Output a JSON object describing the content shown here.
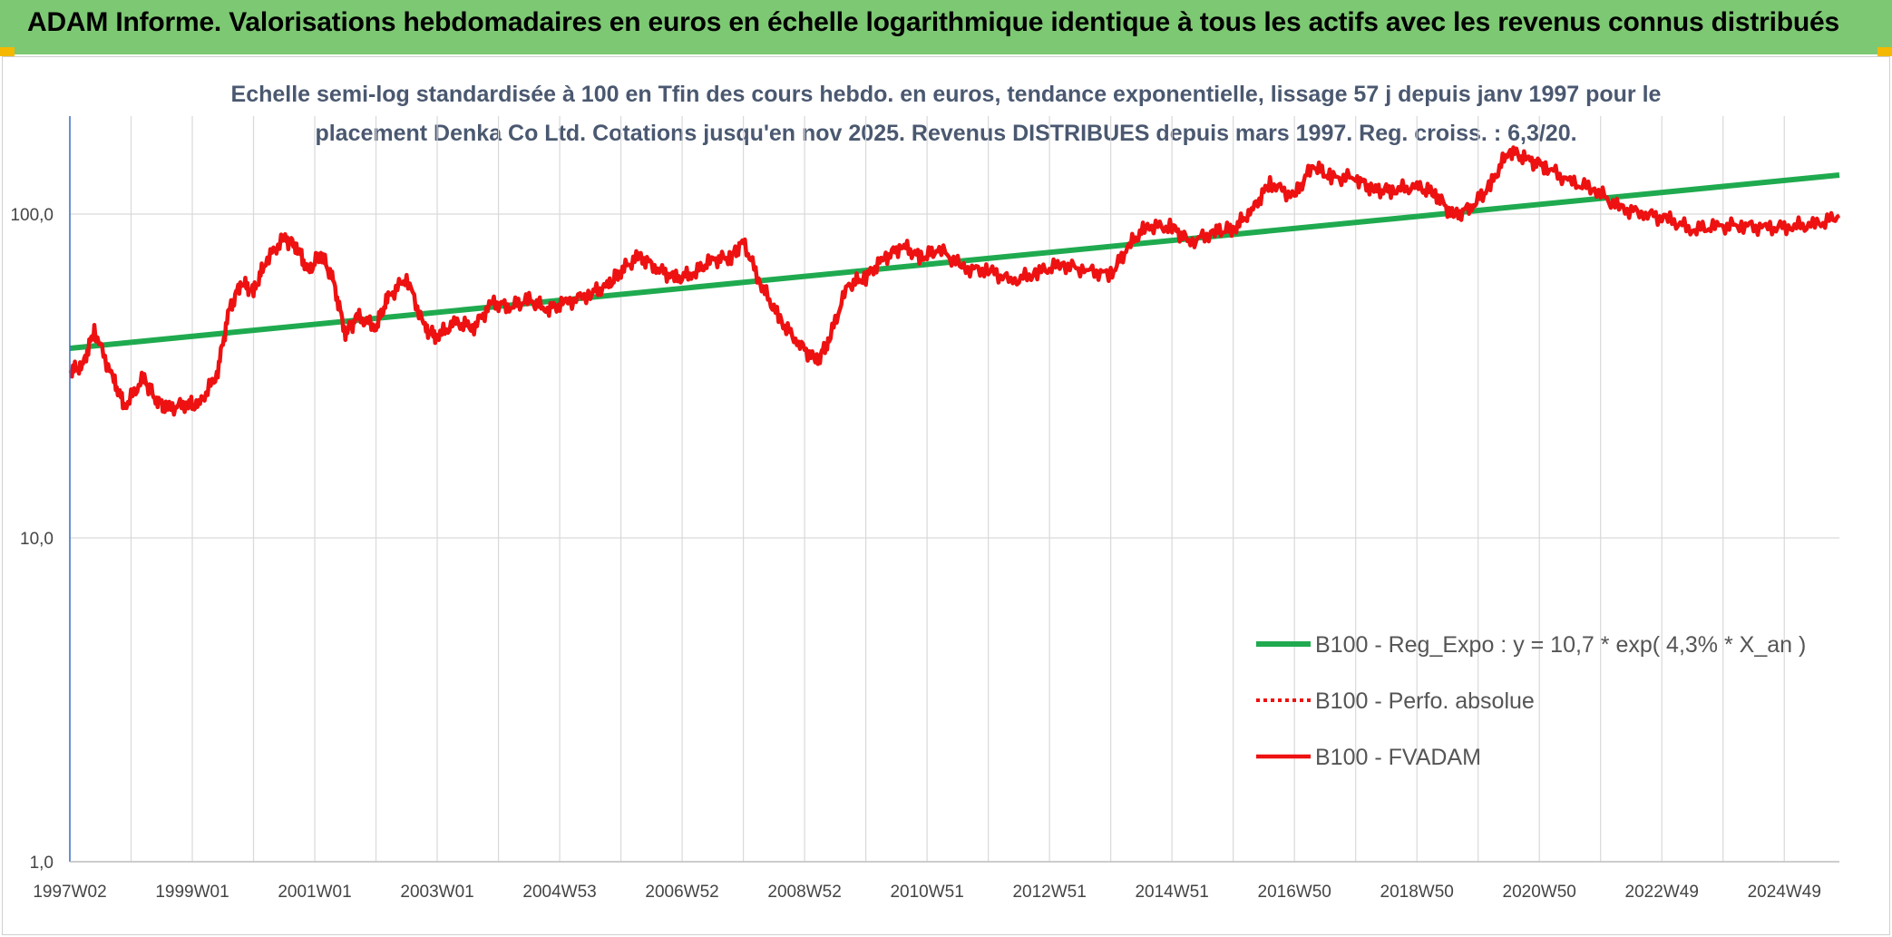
{
  "header": {
    "title": "ADAM Informe. Valorisations hebdomadaires en euros en échelle logarithmique identique à tous les actifs avec les revenus connus distribués"
  },
  "colors": {
    "banner": "#7dc873",
    "trend": "#1faa4f",
    "series": "#ee1111",
    "grid": "#d9d9d9",
    "axis": "#3b6fc8",
    "corner": "#f5b800"
  },
  "chart_data": {
    "type": "line",
    "title_line1": "Echelle semi-log standardisée à 100 en Tfin des cours hebdo. en euros, tendance exponentielle, lissage 57 j depuis janv 1997 pour le",
    "title_line2": "placement Denka Co Ltd. Cotations jusqu'en nov 2025. Revenus DISTRIBUES depuis mars 1997. Reg. croiss. : 6,3/20.",
    "y_scale": "log",
    "ylim": [
      1,
      180
    ],
    "y_ticks": [
      "1,0",
      "10,0",
      "100,0"
    ],
    "y_tick_values": [
      1,
      10,
      100
    ],
    "x_range": [
      1997.0,
      2025.9
    ],
    "x_ticks": [
      "1997W02",
      "1999W01",
      "2001W01",
      "2003W01",
      "2004W53",
      "2006W52",
      "2008W52",
      "2010W51",
      "2012W51",
      "2014W51",
      "2016W50",
      "2018W50",
      "2020W50",
      "2022W49",
      "2024W49"
    ],
    "grid": true,
    "legend_position": "bottom-right",
    "series": [
      {
        "name": "B100 - Reg_Expo : y = 10,7 * exp( 4,3% *  X_an )",
        "style": "solid-green",
        "x": [
          1997.0,
          2025.9
        ],
        "y": [
          38.5,
          132
        ]
      },
      {
        "name": "B100 - Perfo. absolue",
        "style": "dotted-red",
        "x": [],
        "y": []
      },
      {
        "name": "B100 - FVADAM",
        "style": "solid-red",
        "x": [
          1997.0,
          1997.2,
          1997.4,
          1997.7,
          1997.9,
          1998.2,
          1998.4,
          1998.6,
          1998.9,
          1999.1,
          1999.4,
          1999.6,
          1999.8,
          2000.0,
          2000.2,
          2000.5,
          2000.7,
          2000.9,
          2001.1,
          2001.3,
          2001.5,
          2001.7,
          2002.0,
          2002.2,
          2002.5,
          2002.8,
          2003.0,
          2003.3,
          2003.6,
          2003.9,
          2004.2,
          2004.5,
          2004.8,
          2005.1,
          2005.5,
          2005.8,
          2006.0,
          2006.3,
          2006.6,
          2006.9,
          2007.2,
          2007.5,
          2007.8,
          2008.0,
          2008.3,
          2008.6,
          2008.9,
          2009.2,
          2009.4,
          2009.7,
          2010.0,
          2010.3,
          2010.6,
          2010.9,
          2011.2,
          2011.6,
          2012.0,
          2012.4,
          2012.8,
          2013.2,
          2013.6,
          2014.0,
          2014.3,
          2014.6,
          2015.0,
          2015.3,
          2015.7,
          2016.0,
          2016.3,
          2016.6,
          2017.0,
          2017.3,
          2017.6,
          2018.0,
          2018.3,
          2018.6,
          2019.0,
          2019.3,
          2019.6,
          2019.9,
          2020.2,
          2020.5,
          2020.8,
          2021.1,
          2021.5,
          2021.9,
          2022.3,
          2022.7,
          2023.1,
          2023.5,
          2023.9,
          2024.3,
          2024.7,
          2025.1,
          2025.5,
          2025.9
        ],
        "y": [
          33,
          33.5,
          44,
          31,
          25.5,
          31,
          27,
          25,
          26,
          25.5,
          32,
          50,
          62,
          57,
          72,
          84,
          80,
          66,
          76,
          62,
          43,
          48,
          45,
          55,
          64,
          44,
          42,
          46,
          45,
          53,
          52,
          54,
          51,
          53,
          57,
          60,
          67,
          74,
          68,
          63,
          66,
          72,
          74,
          82,
          60,
          47,
          40,
          35,
          41,
          60,
          64,
          73,
          80,
          73,
          78,
          68,
          67,
          62,
          66,
          70,
          67,
          65,
          80,
          92,
          91,
          82,
          88,
          90,
          102,
          125,
          113,
          142,
          129,
          130,
          118,
          119,
          121,
          116,
          98,
          106,
          122,
          158,
          147,
          141,
          125,
          120,
          104,
          101,
          96,
          90,
          91,
          93,
          90,
          92,
          92,
          99
        ]
      }
    ]
  }
}
